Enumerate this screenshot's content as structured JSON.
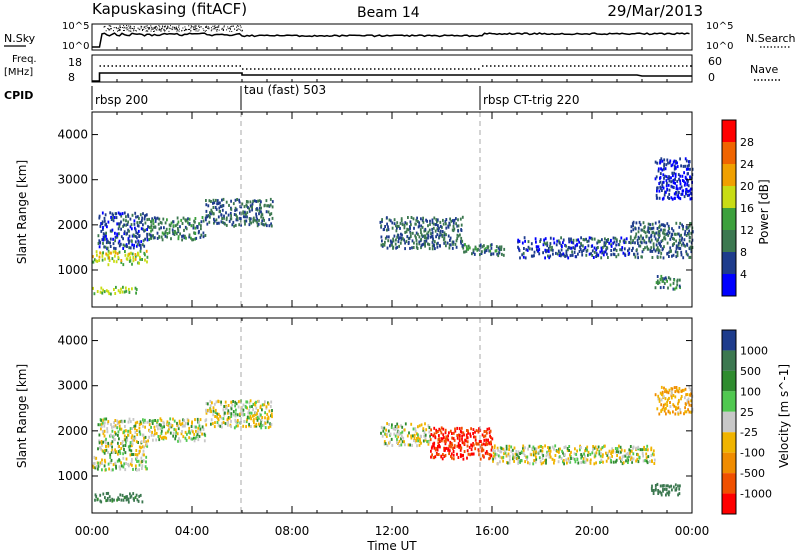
{
  "header": {
    "station": "Kapuskasing (fitACF)",
    "beam": "Beam 14",
    "date": "29/Mar/2013"
  },
  "noise_panel": {
    "left_label": "N.Sky",
    "right_label": "N.Search",
    "left_ticks": [
      "10^5",
      "10^0"
    ],
    "right_ticks": [
      "10^5",
      "10^0"
    ]
  },
  "freq_panel": {
    "left_label_top": "Freq.",
    "left_label_bottom": "[MHz]",
    "right_label": "Nave",
    "left_ticks": [
      "18",
      "8"
    ],
    "right_ticks": [
      "60",
      "0"
    ]
  },
  "cpid": {
    "label": "CPID",
    "segments": [
      {
        "name": "rbsp 200",
        "start_hour": 0
      },
      {
        "name": "tau (fast) 503",
        "start_hour": 6
      },
      {
        "name": "rbsp CT-trig 220",
        "start_hour": 15.6
      }
    ]
  },
  "colors": {
    "power_scale": [
      "#0000ff",
      "#1e3c8c",
      "#3c7850",
      "#3ca03c",
      "#c8dc14",
      "#f0a000",
      "#f06400",
      "#ff0000"
    ],
    "velocity_scale": [
      "#1e3c8c",
      "#3c7850",
      "#2f8c2f",
      "#50c850",
      "#c8c8c8",
      "#f0b400",
      "#f08c00",
      "#f05000",
      "#ff0000"
    ]
  },
  "chart_data": [
    {
      "type": "heatmap",
      "quantity": "Power",
      "ylabel": "Slant Range [km]",
      "colorbar_label": "Power [dB]",
      "colorbar_ticks": [
        "4",
        "8",
        "12",
        "16",
        "20",
        "24",
        "28"
      ],
      "ylim": [
        180,
        4500
      ],
      "y_ticks": [
        "1000",
        "2000",
        "3000",
        "4000"
      ],
      "xlim_hours": [
        0,
        24
      ],
      "x_ticks": [
        "00:00",
        "04:00",
        "08:00",
        "12:00",
        "16:00",
        "20:00",
        "00:00"
      ],
      "xlabel": "Time UT",
      "scatter_bands": [
        {
          "t0": 0.0,
          "t1": 2.2,
          "r0": 1150,
          "r1": 1450,
          "power_db": 18
        },
        {
          "t0": 0.0,
          "t1": 2.0,
          "r0": 500,
          "r1": 650,
          "power_db": 16
        },
        {
          "t0": 0.2,
          "t1": 2.2,
          "r0": 1500,
          "r1": 2300,
          "power_db": 6
        },
        {
          "t0": 2.2,
          "t1": 4.5,
          "r0": 1700,
          "r1": 2200,
          "power_db": 10
        },
        {
          "t0": 4.5,
          "t1": 7.2,
          "r0": 2000,
          "r1": 2600,
          "power_db": 8
        },
        {
          "t0": 11.5,
          "t1": 14.8,
          "r0": 1500,
          "r1": 2200,
          "power_db": 8
        },
        {
          "t0": 14.8,
          "t1": 16.5,
          "r0": 1350,
          "r1": 1600,
          "power_db": 10
        },
        {
          "t0": 17.0,
          "t1": 21.5,
          "r0": 1300,
          "r1": 1750,
          "power_db": 6
        },
        {
          "t0": 21.5,
          "t1": 24.0,
          "r0": 1300,
          "r1": 2100,
          "power_db": 8
        },
        {
          "t0": 22.5,
          "t1": 24.0,
          "r0": 2600,
          "r1": 3500,
          "power_db": 4
        },
        {
          "t0": 22.5,
          "t1": 23.5,
          "r0": 600,
          "r1": 900,
          "power_db": 10
        }
      ]
    },
    {
      "type": "heatmap",
      "quantity": "Velocity",
      "ylabel": "Slant Range [km]",
      "colorbar_label": "Velocity [m s^-1]",
      "colorbar_ticks": [
        "1000",
        "500",
        "100",
        "25",
        "-25",
        "-100",
        "-500",
        "-1000"
      ],
      "ylim": [
        180,
        4500
      ],
      "y_ticks": [
        "1000",
        "2000",
        "3000",
        "4000"
      ],
      "xlim_hours": [
        0,
        24
      ],
      "x_ticks": [
        "00:00",
        "04:00",
        "08:00",
        "12:00",
        "16:00",
        "20:00",
        "00:00"
      ],
      "xlabel": "Time UT",
      "scatter_bands": [
        {
          "t0": 0.0,
          "t1": 2.2,
          "r0": 1150,
          "r1": 1450,
          "velocity": 0
        },
        {
          "t0": 0.0,
          "t1": 2.0,
          "r0": 450,
          "r1": 650,
          "velocity": 150
        },
        {
          "t0": 0.2,
          "t1": 2.2,
          "r0": 1500,
          "r1": 2300,
          "velocity": 0
        },
        {
          "t0": 2.2,
          "t1": 4.5,
          "r0": 1800,
          "r1": 2300,
          "velocity": 0
        },
        {
          "t0": 4.5,
          "t1": 7.2,
          "r0": 2100,
          "r1": 2700,
          "velocity": 0
        },
        {
          "t0": 11.5,
          "t1": 13.5,
          "r0": 1700,
          "r1": 2200,
          "velocity": 0
        },
        {
          "t0": 13.5,
          "t1": 16.0,
          "r0": 1400,
          "r1": 2100,
          "velocity": -600
        },
        {
          "t0": 16.0,
          "t1": 22.5,
          "r0": 1300,
          "r1": 1700,
          "velocity": 0
        },
        {
          "t0": 22.5,
          "t1": 24.0,
          "r0": 2400,
          "r1": 3000,
          "velocity": -80
        },
        {
          "t0": 22.3,
          "t1": 23.5,
          "r0": 600,
          "r1": 850,
          "velocity": 200
        }
      ]
    }
  ],
  "noise_trace_hours": [
    0,
    0.4,
    1.5,
    3.0,
    5.9,
    6.0,
    10,
    15.6,
    16,
    20,
    24
  ]
}
